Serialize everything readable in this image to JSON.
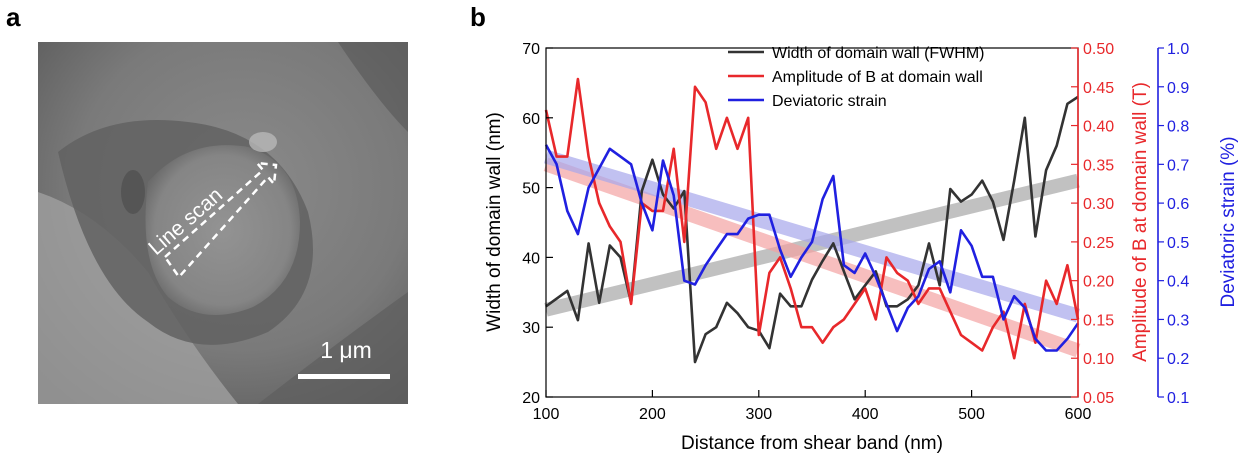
{
  "panels": {
    "a": "a",
    "b": "b"
  },
  "micrograph": {
    "line_scan_label": "Line scan",
    "scale_bar_label": "1 μm"
  },
  "colors": {
    "width": "#333333",
    "amplitude": "#e8282b",
    "strain": "#2020e0",
    "width_band": "#a8a8a8",
    "amplitude_band": "#f4a3a3",
    "strain_band": "#a8a8ec"
  },
  "chart_data": {
    "type": "line",
    "xlabel": "Distance from shear band (nm)",
    "xlim": [
      100,
      600
    ],
    "xticks": [
      100,
      200,
      300,
      400,
      500,
      600
    ],
    "grid": false,
    "legend_position": "top-center",
    "axes": {
      "left": {
        "label": "Width of domain wall (nm)",
        "lim": [
          20,
          70
        ],
        "ticks": [
          20,
          30,
          40,
          50,
          60,
          70
        ],
        "color": "#000000"
      },
      "right1": {
        "label": "Amplitude of B at domain wall (T)",
        "lim": [
          0.05,
          0.5
        ],
        "ticks": [
          "0.05",
          "0.10",
          "0.15",
          "0.20",
          "0.25",
          "0.30",
          "0.35",
          "0.40",
          "0.45",
          "0.50"
        ],
        "color": "#e8282b"
      },
      "right2": {
        "label": "Deviatoric strain (%)",
        "lim": [
          0.1,
          1.0
        ],
        "ticks": [
          "0.1",
          "0.2",
          "0.3",
          "0.4",
          "0.5",
          "0.6",
          "0.7",
          "0.8",
          "0.9",
          "1.0"
        ],
        "color": "#2020e0"
      }
    },
    "series": [
      {
        "name": "Width of domain wall (FWHM)",
        "axis": "left",
        "color": "#333333",
        "x": [
          100,
          120,
          130,
          140,
          150,
          160,
          170,
          180,
          190,
          200,
          210,
          220,
          230,
          240,
          250,
          260,
          270,
          280,
          290,
          300,
          310,
          320,
          330,
          340,
          350,
          360,
          370,
          380,
          390,
          400,
          410,
          420,
          430,
          440,
          450,
          460,
          470,
          480,
          490,
          500,
          510,
          520,
          530,
          540,
          550,
          560,
          570,
          580,
          590,
          600
        ],
        "y": [
          33,
          35.2,
          31,
          42,
          33.5,
          41.7,
          40,
          33.5,
          49.5,
          54,
          49,
          47,
          49.5,
          25,
          29,
          30,
          33.5,
          32,
          30,
          29.5,
          27,
          34.8,
          33,
          33,
          36.8,
          39.5,
          42,
          38,
          34,
          36,
          38,
          33,
          33,
          34,
          36,
          42,
          36,
          49.8,
          48,
          49,
          51,
          48,
          42.5,
          51,
          60,
          43,
          52.5,
          56,
          62,
          63
        ]
      },
      {
        "name": "Amplitude of B at domain wall (T)",
        "axis": "right1",
        "color": "#e8282b",
        "x": [
          100,
          110,
          120,
          130,
          140,
          150,
          160,
          170,
          180,
          190,
          200,
          210,
          220,
          230,
          240,
          250,
          260,
          270,
          280,
          290,
          300,
          310,
          320,
          330,
          340,
          350,
          360,
          370,
          380,
          390,
          400,
          410,
          420,
          430,
          440,
          450,
          460,
          470,
          480,
          490,
          500,
          510,
          520,
          530,
          540,
          550,
          560,
          570,
          580,
          590,
          600
        ],
        "y": [
          0.42,
          0.36,
          0.36,
          0.46,
          0.36,
          0.3,
          0.27,
          0.25,
          0.17,
          0.3,
          0.29,
          0.29,
          0.37,
          0.25,
          0.45,
          0.43,
          0.37,
          0.41,
          0.37,
          0.41,
          0.13,
          0.21,
          0.23,
          0.19,
          0.14,
          0.14,
          0.12,
          0.14,
          0.15,
          0.17,
          0.19,
          0.15,
          0.23,
          0.21,
          0.2,
          0.17,
          0.19,
          0.19,
          0.16,
          0.13,
          0.12,
          0.11,
          0.14,
          0.16,
          0.1,
          0.17,
          0.12,
          0.2,
          0.17,
          0.22,
          0.15
        ]
      },
      {
        "name": "Deviatoric strain",
        "axis": "right2",
        "color": "#2020e0",
        "x": [
          100,
          110,
          120,
          130,
          140,
          150,
          160,
          170,
          180,
          190,
          200,
          210,
          220,
          230,
          240,
          250,
          260,
          270,
          280,
          290,
          300,
          310,
          320,
          330,
          340,
          350,
          360,
          370,
          380,
          390,
          400,
          410,
          420,
          430,
          440,
          450,
          460,
          470,
          480,
          490,
          500,
          510,
          520,
          530,
          540,
          550,
          560,
          570,
          580,
          590,
          600
        ],
        "y": [
          0.75,
          0.7,
          0.58,
          0.52,
          0.64,
          0.69,
          0.74,
          0.72,
          0.7,
          0.6,
          0.53,
          0.71,
          0.62,
          0.4,
          0.39,
          0.44,
          0.48,
          0.52,
          0.52,
          0.56,
          0.57,
          0.57,
          0.48,
          0.41,
          0.46,
          0.5,
          0.61,
          0.67,
          0.44,
          0.42,
          0.47,
          0.41,
          0.34,
          0.27,
          0.33,
          0.36,
          0.43,
          0.45,
          0.37,
          0.53,
          0.49,
          0.41,
          0.41,
          0.3,
          0.36,
          0.33,
          0.25,
          0.22,
          0.22,
          0.25,
          0.29
        ]
      }
    ],
    "trend_bands": [
      {
        "axis": "left",
        "color": "#a8a8a8",
        "x": [
          100,
          600
        ],
        "y": [
          32.5,
          51
        ]
      },
      {
        "axis": "right1",
        "color": "#f4a3a3",
        "x": [
          100,
          600
        ],
        "y": [
          0.35,
          0.11
        ]
      },
      {
        "axis": "right2",
        "color": "#a8a8ec",
        "x": [
          100,
          600
        ],
        "y": [
          0.72,
          0.31
        ]
      }
    ]
  }
}
